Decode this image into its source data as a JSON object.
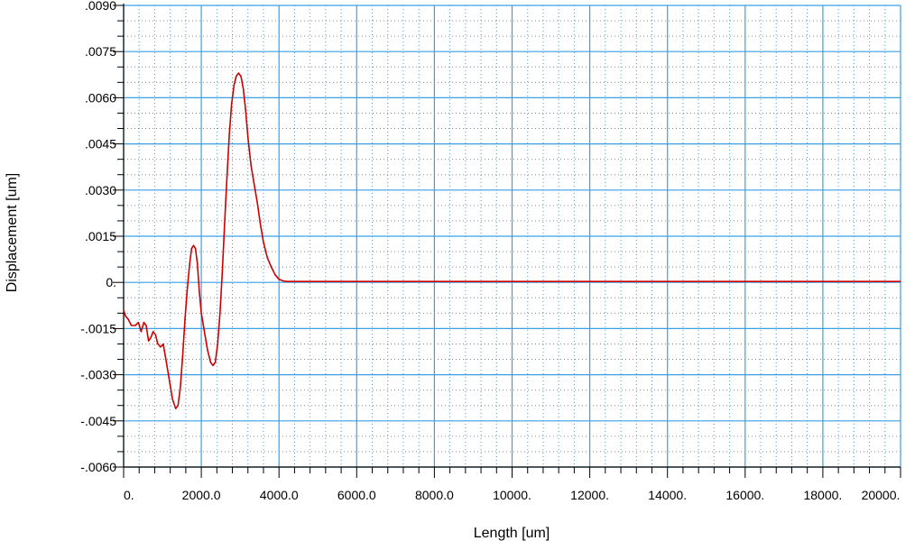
{
  "chart_data": {
    "type": "line",
    "xlabel": "Length [um]",
    "ylabel": "Displacement [um]",
    "xlim": [
      0,
      20000
    ],
    "ylim": [
      -0.006,
      0.009
    ],
    "x_ticks": [
      {
        "value": 0,
        "label": "0."
      },
      {
        "value": 2000,
        "label": "2000.0"
      },
      {
        "value": 4000,
        "label": "4000.0"
      },
      {
        "value": 6000,
        "label": "6000.0"
      },
      {
        "value": 8000,
        "label": "8000.0"
      },
      {
        "value": 10000,
        "label": "10000."
      },
      {
        "value": 12000,
        "label": "12000."
      },
      {
        "value": 14000,
        "label": "14000."
      },
      {
        "value": 16000,
        "label": "16000."
      },
      {
        "value": 18000,
        "label": "18000."
      },
      {
        "value": 20000,
        "label": "20000."
      }
    ],
    "y_ticks": [
      {
        "value": 0.009,
        "label": ".0090"
      },
      {
        "value": 0.0075,
        "label": ".0075"
      },
      {
        "value": 0.006,
        "label": ".0060"
      },
      {
        "value": 0.0045,
        "label": ".0045"
      },
      {
        "value": 0.003,
        "label": ".0030"
      },
      {
        "value": 0.0015,
        "label": ".0015"
      },
      {
        "value": 0,
        "label": "0."
      },
      {
        "value": -0.0015,
        "label": "-.0015"
      },
      {
        "value": -0.003,
        "label": "-.0030"
      },
      {
        "value": -0.0045,
        "label": "-.0045"
      },
      {
        "value": -0.006,
        "label": "-.0060"
      }
    ],
    "grid": true,
    "colors": {
      "series": "#cc0000",
      "grid_major": "#3aa0e6",
      "grid_minor": "#3aa0e6",
      "axis": "#000000"
    },
    "series": [
      {
        "x": [
          0,
          50,
          120,
          200,
          300,
          380,
          450,
          520,
          580,
          640,
          700,
          760,
          820,
          880,
          950,
          1020,
          1100,
          1180,
          1260,
          1340,
          1400,
          1460,
          1520,
          1580,
          1640,
          1700,
          1750,
          1800,
          1850,
          1900,
          1950,
          2000,
          2080,
          2160,
          2240,
          2300,
          2360,
          2420,
          2480,
          2540,
          2600,
          2660,
          2720,
          2780,
          2840,
          2900,
          2960,
          3020,
          3080,
          3140,
          3200,
          3280,
          3360,
          3440,
          3520,
          3600,
          3700,
          3800,
          3900,
          4000,
          4100,
          4200,
          4300,
          4500,
          5000,
          6000,
          8000,
          10000,
          12000,
          14000,
          16000,
          18000,
          20000
        ],
        "y": [
          -0.0009,
          -0.0011,
          -0.0012,
          -0.0014,
          -0.0014,
          -0.0013,
          -0.0016,
          -0.0013,
          -0.0014,
          -0.0019,
          -0.0018,
          -0.0016,
          -0.0017,
          -0.002,
          -0.0021,
          -0.002,
          -0.0026,
          -0.0032,
          -0.0038,
          -0.0041,
          -0.004,
          -0.0034,
          -0.0024,
          -0.0012,
          -0.0002,
          0.0006,
          0.0011,
          0.0012,
          0.0011,
          0.0006,
          -0.0003,
          -0.001,
          -0.0016,
          -0.0022,
          -0.0026,
          -0.0027,
          -0.0026,
          -0.002,
          -0.001,
          0.0003,
          0.0019,
          0.0034,
          0.0048,
          0.0058,
          0.0064,
          0.0067,
          0.0068,
          0.0067,
          0.0063,
          0.0056,
          0.0047,
          0.0038,
          0.0032,
          0.0026,
          0.0019,
          0.0013,
          0.0008,
          0.0005,
          0.00025,
          0.0001,
          5e-05,
          3e-05,
          3e-05,
          3e-05,
          3e-05,
          3e-05,
          3e-05,
          3e-05,
          3e-05,
          3e-05,
          3e-05,
          3e-05,
          3e-05
        ]
      }
    ]
  }
}
